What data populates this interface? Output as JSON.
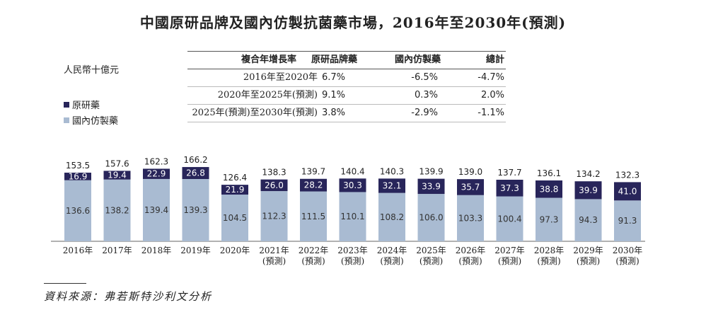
{
  "title": "中國原研品牌及國內仿製抗菌藥市場，2016年至2030年(預測)",
  "unit": "人民幣十億元",
  "legend": [
    {
      "label": "原研藥",
      "color": "#28255a"
    },
    {
      "label": "國內仿製藥",
      "color": "#a9bbd2"
    }
  ],
  "cagr_table": {
    "headers": [
      "複合年增長率",
      "原研品牌藥",
      "國內仿製藥",
      "總計"
    ],
    "rows": [
      [
        "2016年至2020年",
        "6.7%",
        "-6.5%",
        "-4.7%"
      ],
      [
        "2020年至2025年(預測)",
        "9.1%",
        "0.3%",
        "2.0%"
      ],
      [
        "2025年(預測)至2030年(預測)",
        "3.8%",
        "-2.9%",
        "-1.1%"
      ]
    ]
  },
  "chart_data": {
    "type": "bar",
    "stacked": true,
    "categories": [
      "2016年",
      "2017年",
      "2018年",
      "2019年",
      "2020年",
      "2021年",
      "2022年",
      "2023年",
      "2024年",
      "2025年",
      "2026年",
      "2027年",
      "2028年",
      "2029年",
      "2030年"
    ],
    "category_notes": [
      "",
      "",
      "",
      "",
      "",
      "(預測)",
      "(預測)",
      "(預測)",
      "(預測)",
      "(預測)",
      "(預測)",
      "(預測)",
      "(預測)",
      "(預測)",
      "(預測)"
    ],
    "series": [
      {
        "name": "國內仿製藥",
        "color": "#a9bbd2",
        "values": [
          136.6,
          138.2,
          139.4,
          139.3,
          104.5,
          112.3,
          111.5,
          110.1,
          108.2,
          106.0,
          103.3,
          100.4,
          97.3,
          94.3,
          91.3
        ],
        "labels": [
          "136.6",
          "138.2",
          "139.4",
          "139.3",
          "104.5",
          "112.3",
          "111.5",
          "110.1",
          "108.2",
          "106.0",
          "103.3",
          "100.4",
          "97.3",
          "94.3",
          "91.3"
        ]
      },
      {
        "name": "原研藥",
        "color": "#28255a",
        "values": [
          16.9,
          19.4,
          22.9,
          26.8,
          21.9,
          26.0,
          28.2,
          30.3,
          32.1,
          33.9,
          35.7,
          37.3,
          38.8,
          39.9,
          41.0
        ],
        "labels": [
          "16.9",
          "19.4",
          "22.9",
          "26.8",
          "21.9",
          "26.0",
          "28.2",
          "30.3",
          "32.1",
          "33.9",
          "35.7",
          "37.3",
          "38.8",
          "39.9",
          "41.0"
        ]
      }
    ],
    "totals": [
      "153.5",
      "157.6",
      "162.3",
      "166.2",
      "126.4",
      "138.3",
      "139.7",
      "140.4",
      "140.3",
      "139.9",
      "139.0",
      "137.7",
      "136.1",
      "134.2",
      "132.3"
    ],
    "ylim": [
      0,
      170
    ]
  },
  "source": "資料來源：弗若斯特沙利文分析"
}
